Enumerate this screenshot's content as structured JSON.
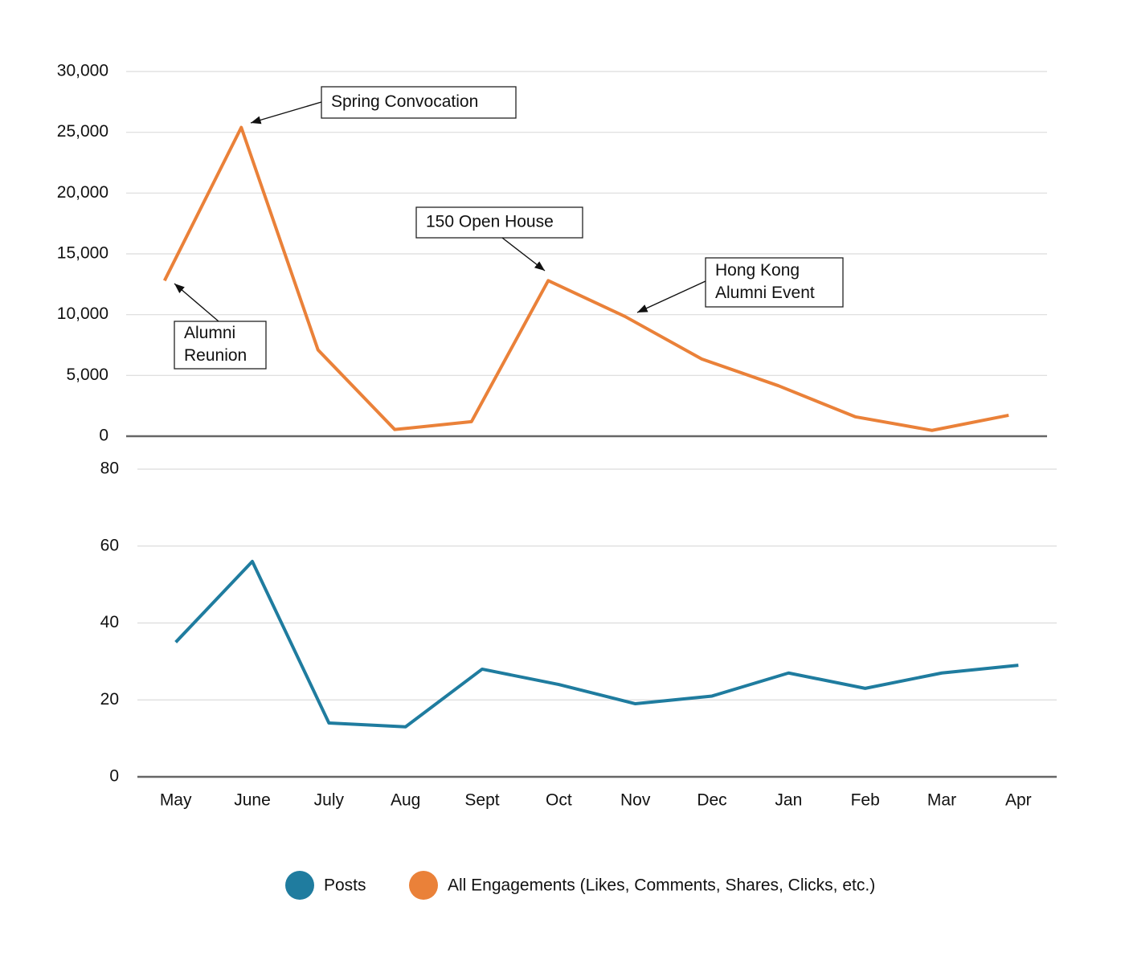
{
  "chart_data": [
    {
      "type": "line",
      "series": [
        {
          "name": "All Engagements (Likes, Comments, Shares, Clicks, etc.)",
          "color": "#ea8139",
          "values": [
            12800,
            25400,
            7100,
            550,
            1200,
            12800,
            9850,
            6350,
            4150,
            1600,
            480,
            1720
          ]
        }
      ],
      "ylim": [
        0,
        30000
      ],
      "yticks": [
        0,
        {
          "value": 5000,
          "label": "5,000"
        },
        {
          "value": 10000,
          "label": "10,000"
        },
        {
          "value": 15000,
          "label": "15,000"
        },
        {
          "value": 20000,
          "label": "20,000"
        },
        {
          "value": 25000,
          "label": "25,000"
        },
        {
          "value": 30000,
          "label": "30,000"
        }
      ],
      "grid": true,
      "annotations": [
        [
          "Spring Convocation"
        ],
        [
          "150 Open House"
        ],
        [
          "Hong Kong",
          "Alumni Event"
        ],
        [
          "Alumni",
          "Reunion"
        ]
      ]
    },
    {
      "type": "line",
      "categories": [
        "May",
        "June",
        "July",
        "Aug",
        "Sept",
        "Oct",
        "Nov",
        "Dec",
        "Jan",
        "Feb",
        "Mar",
        "Apr"
      ],
      "series": [
        {
          "name": "Posts",
          "color": "#1f7c9f",
          "values": [
            35,
            56,
            14,
            13,
            28,
            24,
            19,
            21,
            27,
            23,
            27,
            29
          ]
        }
      ],
      "ylim": [
        0,
        80
      ],
      "yticks": [
        0,
        20,
        40,
        60,
        80
      ],
      "grid": true
    }
  ]
}
